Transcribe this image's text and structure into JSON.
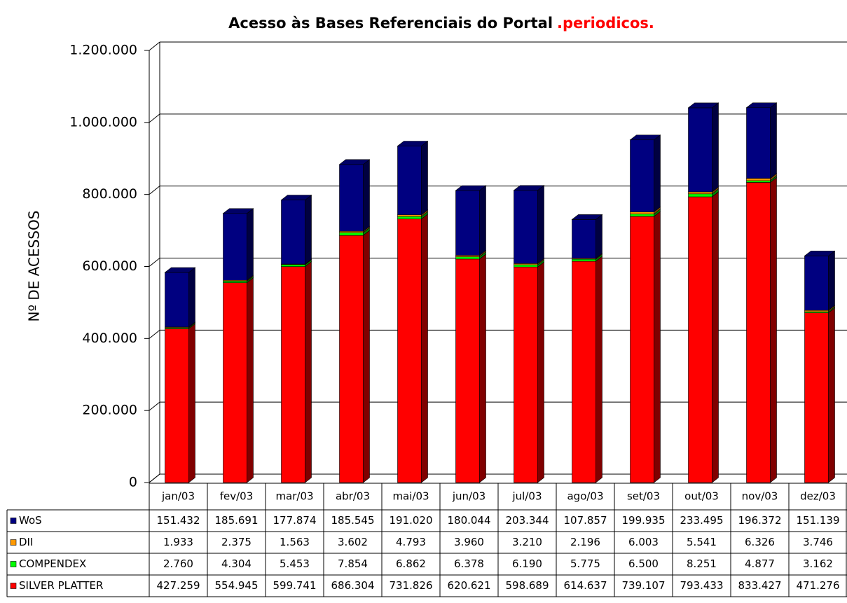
{
  "chart_data": {
    "type": "bar",
    "title": "Acesso às Bases Referenciais do Portal",
    "title_highlight": ".periodicos.",
    "y_label": "Nº DE ACESSOS",
    "categories": [
      "jan/03",
      "fev/03",
      "mar/03",
      "abr/03",
      "mai/03",
      "jun/03",
      "jul/03",
      "ago/03",
      "set/03",
      "out/03",
      "nov/03",
      "dez/03"
    ],
    "series": [
      {
        "name": "WoS",
        "color": "#000080",
        "values": [
          151432,
          185691,
          177874,
          185545,
          191020,
          180044,
          203344,
          107857,
          199935,
          233495,
          196372,
          151139
        ],
        "value_labels": [
          "151.432",
          "185.691",
          "177.874",
          "185.545",
          "191.020",
          "180.044",
          "203.344",
          "107.857",
          "199.935",
          "233.495",
          "196.372",
          "151.139"
        ]
      },
      {
        "name": "DII",
        "color": "#ff9900",
        "values": [
          1933,
          2375,
          1563,
          3602,
          4793,
          3960,
          3210,
          2196,
          6003,
          5541,
          6326,
          3746
        ],
        "value_labels": [
          "1.933",
          "2.375",
          "1.563",
          "3.602",
          "4.793",
          "3.960",
          "3.210",
          "2.196",
          "6.003",
          "5.541",
          "6.326",
          "3.746"
        ]
      },
      {
        "name": "COMPENDEX",
        "color": "#00ff00",
        "values": [
          2760,
          4304,
          5453,
          7854,
          6862,
          6378,
          6190,
          5775,
          6500,
          8251,
          4877,
          3162
        ],
        "value_labels": [
          "2.760",
          "4.304",
          "5.453",
          "7.854",
          "6.862",
          "6.378",
          "6.190",
          "5.775",
          "6.500",
          "8.251",
          "4.877",
          "3.162"
        ]
      },
      {
        "name": "SILVER PLATTER",
        "color": "#ff0000",
        "values": [
          427259,
          554945,
          599741,
          686304,
          731826,
          620621,
          598689,
          614637,
          739107,
          793433,
          833427,
          471276
        ],
        "value_labels": [
          "427.259",
          "554.945",
          "599.741",
          "686.304",
          "731.826",
          "620.621",
          "598.689",
          "614.637",
          "739.107",
          "793.433",
          "833.427",
          "471.276"
        ]
      }
    ],
    "ylim": [
      0,
      1200000
    ],
    "yticks": [
      0,
      {
        "value": 200000,
        "label": "200.000"
      },
      {
        "value": 400000,
        "label": "400.000"
      },
      {
        "value": 600000,
        "label": "600.000"
      },
      {
        "value": 800000,
        "label": "800.000"
      },
      {
        "value": 1000000,
        "label": "1.000.000"
      },
      {
        "value": 1200000,
        "label": "1.200.000"
      }
    ],
    "grid": true
  }
}
